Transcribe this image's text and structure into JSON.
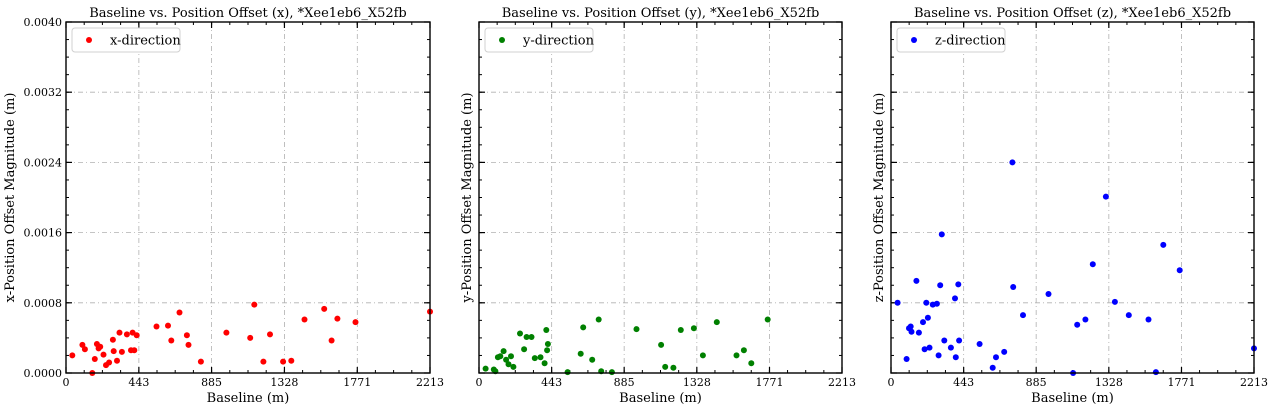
{
  "chart_data": [
    {
      "type": "scatter",
      "title": "Baseline vs. Position Offset (x), *Xee1eb6_X52fb",
      "xlabel": "Baseline (m)",
      "ylabel": "x-Position Offset Magnitude (m)",
      "xlim": [
        0,
        2213
      ],
      "ylim": [
        0,
        0.004
      ],
      "xticks": [
        "0",
        "443",
        "885",
        "1328",
        "1771",
        "2213"
      ],
      "yticks": [
        "0.0000",
        "0.0008",
        "0.0016",
        "0.0024",
        "0.0032",
        "0.0040"
      ],
      "show_ytick_labels": true,
      "grid": true,
      "legend_position": "top-left",
      "series": [
        {
          "name": "x-direction",
          "color": "#ff0000",
          "points": [
            [
              38,
              0.0002
            ],
            [
              100,
              0.00032
            ],
            [
              115,
              0.00027
            ],
            [
              160,
              0.0
            ],
            [
              175,
              0.00016
            ],
            [
              188,
              0.00033
            ],
            [
              198,
              0.00028
            ],
            [
              208,
              0.0003
            ],
            [
              228,
              0.00021
            ],
            [
              243,
              9e-05
            ],
            [
              262,
              0.00012
            ],
            [
              285,
              0.00038
            ],
            [
              290,
              0.00025
            ],
            [
              310,
              0.00014
            ],
            [
              325,
              0.00046
            ],
            [
              340,
              0.00024
            ],
            [
              370,
              0.00044
            ],
            [
              395,
              0.00026
            ],
            [
              405,
              0.00046
            ],
            [
              415,
              0.00026
            ],
            [
              430,
              0.00043
            ],
            [
              550,
              0.00053
            ],
            [
              620,
              0.00054
            ],
            [
              640,
              0.00037
            ],
            [
              690,
              0.00069
            ],
            [
              735,
              0.00043
            ],
            [
              745,
              0.00032
            ],
            [
              820,
              0.00013
            ],
            [
              975,
              0.00046
            ],
            [
              1120,
              0.0004
            ],
            [
              1145,
              0.00078
            ],
            [
              1200,
              0.00013
            ],
            [
              1240,
              0.00044
            ],
            [
              1320,
              0.00013
            ],
            [
              1370,
              0.00014
            ],
            [
              1450,
              0.00061
            ],
            [
              1570,
              0.00073
            ],
            [
              1615,
              0.00037
            ],
            [
              1650,
              0.00062
            ],
            [
              1760,
              0.00058
            ],
            [
              2213,
              0.0007
            ]
          ]
        }
      ]
    },
    {
      "type": "scatter",
      "title": "Baseline vs. Position Offset (y), *Xee1eb6_X52fb",
      "xlabel": "Baseline (m)",
      "ylabel": "y-Position Offset Magnitude (m)",
      "xlim": [
        0,
        2213
      ],
      "ylim": [
        0,
        0.004
      ],
      "xticks": [
        "0",
        "443",
        "885",
        "1328",
        "1771",
        "2213"
      ],
      "yticks": [
        "0.0000",
        "0.0008",
        "0.0016",
        "0.0024",
        "0.0032",
        "0.0040"
      ],
      "show_ytick_labels": false,
      "grid": true,
      "legend_position": "top-left",
      "series": [
        {
          "name": "y-direction",
          "color": "#008000",
          "points": [
            [
              40,
              5e-05
            ],
            [
              90,
              4e-05
            ],
            [
              100,
              2e-05
            ],
            [
              115,
              0.00018
            ],
            [
              130,
              0.00019
            ],
            [
              150,
              0.00025
            ],
            [
              165,
              0.00015
            ],
            [
              180,
              0.0001
            ],
            [
              195,
              0.00019
            ],
            [
              210,
              7e-05
            ],
            [
              250,
              0.00045
            ],
            [
              275,
              0.00027
            ],
            [
              290,
              0.00041
            ],
            [
              320,
              0.00041
            ],
            [
              340,
              0.00017
            ],
            [
              375,
              0.00018
            ],
            [
              400,
              0.00011
            ],
            [
              410,
              0.00049
            ],
            [
              415,
              0.00026
            ],
            [
              420,
              0.00033
            ],
            [
              540,
              1e-05
            ],
            [
              620,
              0.00022
            ],
            [
              635,
              0.00052
            ],
            [
              690,
              0.00015
            ],
            [
              730,
              0.00061
            ],
            [
              745,
              2e-05
            ],
            [
              810,
              1e-05
            ],
            [
              960,
              0.0005
            ],
            [
              1110,
              0.00032
            ],
            [
              1135,
              7e-05
            ],
            [
              1185,
              6e-05
            ],
            [
              1230,
              0.00049
            ],
            [
              1310,
              0.00051
            ],
            [
              1365,
              0.0002
            ],
            [
              1450,
              0.00058
            ],
            [
              1570,
              0.0002
            ],
            [
              1615,
              0.00026
            ],
            [
              1660,
              0.00011
            ],
            [
              1760,
              0.00061
            ]
          ]
        }
      ]
    },
    {
      "type": "scatter",
      "title": "Baseline vs. Position Offset (z), *Xee1eb6_X52fb",
      "xlabel": "Baseline (m)",
      "ylabel": "z-Position Offset Magnitude (m)",
      "xlim": [
        0,
        2213
      ],
      "ylim": [
        0,
        0.004
      ],
      "xticks": [
        "0",
        "443",
        "885",
        "1328",
        "1771",
        "2213"
      ],
      "yticks": [
        "0.0000",
        "0.0008",
        "0.0016",
        "0.0024",
        "0.0032",
        "0.0040"
      ],
      "show_ytick_labels": false,
      "grid": true,
      "legend_position": "top-left",
      "series": [
        {
          "name": "z-direction",
          "color": "#0000ff",
          "points": [
            [
              40,
              0.0008
            ],
            [
              95,
              0.00016
            ],
            [
              110,
              0.00051
            ],
            [
              120,
              0.00053
            ],
            [
              125,
              0.00047
            ],
            [
              155,
              0.00105
            ],
            [
              170,
              0.00046
            ],
            [
              195,
              0.00058
            ],
            [
              205,
              0.00027
            ],
            [
              215,
              0.0008
            ],
            [
              225,
              0.00063
            ],
            [
              235,
              0.00029
            ],
            [
              255,
              0.00078
            ],
            [
              280,
              0.00079
            ],
            [
              290,
              0.0002
            ],
            [
              300,
              0.001
            ],
            [
              310,
              0.00158
            ],
            [
              325,
              0.00037
            ],
            [
              365,
              0.00029
            ],
            [
              390,
              0.00085
            ],
            [
              395,
              0.00018
            ],
            [
              410,
              0.00101
            ],
            [
              415,
              0.00037
            ],
            [
              540,
              0.00033
            ],
            [
              620,
              6e-05
            ],
            [
              640,
              0.00018
            ],
            [
              690,
              0.00024
            ],
            [
              740,
              0.0024
            ],
            [
              745,
              0.00098
            ],
            [
              805,
              0.00066
            ],
            [
              960,
              0.0009
            ],
            [
              1110,
              0.0
            ],
            [
              1135,
              0.00055
            ],
            [
              1185,
              0.00061
            ],
            [
              1230,
              0.00124
            ],
            [
              1310,
              0.00201
            ],
            [
              1365,
              0.00081
            ],
            [
              1450,
              0.00066
            ],
            [
              1570,
              0.00061
            ],
            [
              1615,
              1e-05
            ],
            [
              1660,
              0.00146
            ],
            [
              1760,
              0.00117
            ],
            [
              2213,
              0.00028
            ]
          ]
        }
      ]
    }
  ]
}
